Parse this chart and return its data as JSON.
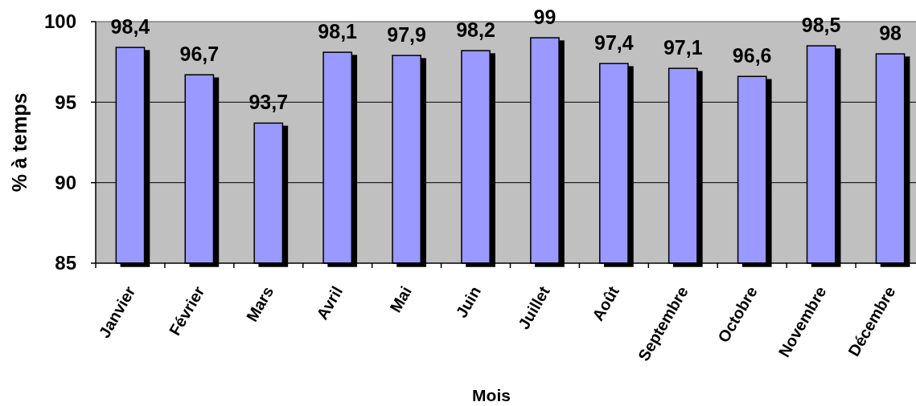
{
  "chart_data": {
    "type": "bar",
    "xlabel": "Mois",
    "ylabel": "% à temps",
    "categories": [
      "Janvier",
      "Février",
      "Mars",
      "Avril",
      "Mai",
      "Juin",
      "Juillet",
      "Août",
      "Septembre",
      "Octobre",
      "Novembre",
      "Décembre"
    ],
    "values": [
      98.4,
      96.7,
      93.7,
      98.1,
      97.9,
      98.2,
      99,
      97.4,
      97.1,
      96.6,
      98.5,
      98
    ],
    "value_labels": [
      "98,4",
      "96,7",
      "93,7",
      "98,1",
      "97,9",
      "98,2",
      "99",
      "97,4",
      "97,1",
      "96,6",
      "98,5",
      "98"
    ],
    "color": "#9999ff",
    "ylim": [
      85,
      100
    ],
    "yticks": [
      85,
      90,
      95,
      100
    ],
    "grid": "y"
  }
}
